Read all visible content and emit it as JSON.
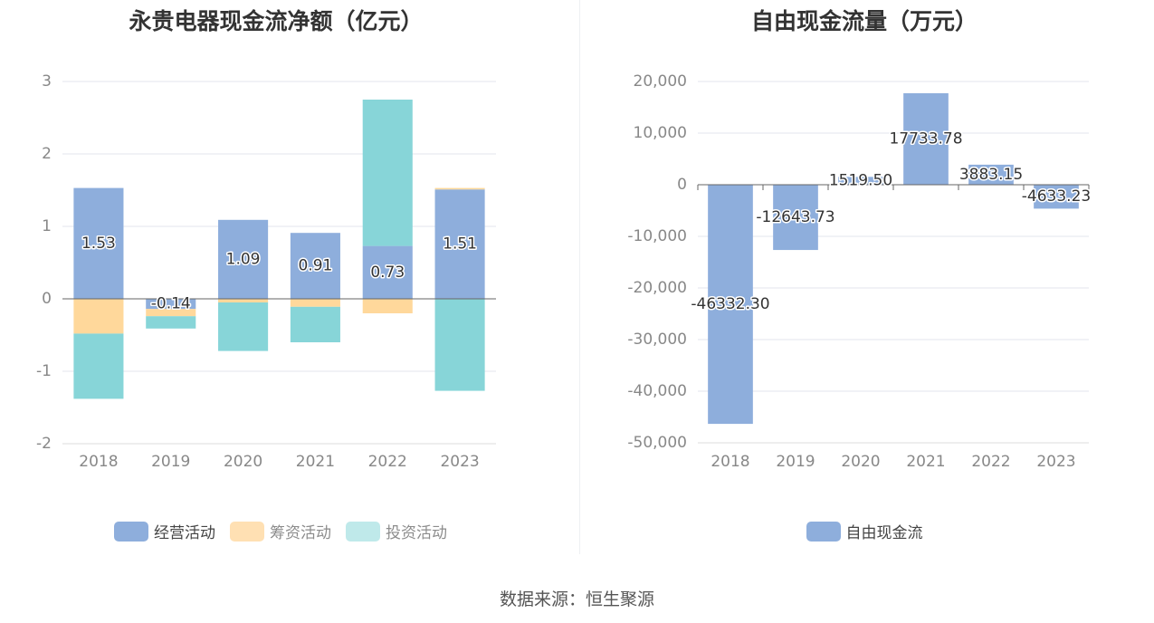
{
  "charts": {
    "left": {
      "title": "永贵电器现金流净额（亿元）",
      "legend": [
        {
          "label": "经营活动",
          "color": "#8eaedc"
        },
        {
          "label": "筹资活动",
          "color": "#ffe0b3"
        },
        {
          "label": "投资活动",
          "color": "#bfe9ea"
        }
      ]
    },
    "right": {
      "title": "自由现金流量（万元）",
      "legend": [
        {
          "label": "自由现金流",
          "color": "#8eaedc"
        }
      ]
    }
  },
  "source": "数据来源：恒生聚源",
  "chart_data": [
    {
      "type": "bar",
      "stacked": true,
      "title": "永贵电器现金流净额（亿元）",
      "categories": [
        "2018",
        "2019",
        "2020",
        "2021",
        "2022",
        "2023"
      ],
      "ylim": [
        -2,
        3
      ],
      "yticks": [
        3,
        2,
        1,
        0,
        -1,
        -2
      ],
      "ytick_labels": [
        "3",
        "2",
        "1",
        "0",
        "-1",
        "-2"
      ],
      "series": [
        {
          "name": "经营活动",
          "color": "#8eaedc",
          "values": [
            1.53,
            -0.14,
            1.09,
            0.91,
            0.73,
            1.51
          ],
          "labels": [
            "1.53",
            "-0.14",
            "1.09",
            "0.91",
            "0.73",
            "1.51"
          ]
        },
        {
          "name": "筹资活动",
          "color": "#ffd89b",
          "values": [
            -0.48,
            -0.1,
            -0.05,
            -0.11,
            -0.2,
            0.02
          ]
        },
        {
          "name": "投资活动",
          "color": "#87d5d8",
          "values": [
            -0.9,
            -0.17,
            -0.67,
            -0.49,
            2.02,
            -1.27
          ]
        }
      ]
    },
    {
      "type": "bar",
      "title": "自由现金流量（万元）",
      "categories": [
        "2018",
        "2019",
        "2020",
        "2021",
        "2022",
        "2023"
      ],
      "ylim": [
        -50000,
        20000
      ],
      "yticks": [
        20000,
        10000,
        0,
        -10000,
        -20000,
        -30000,
        -40000,
        -50000
      ],
      "ytick_labels": [
        "20,000",
        "10,000",
        "0",
        "-10,000",
        "-20,000",
        "-30,000",
        "-40,000",
        "-50,000"
      ],
      "series": [
        {
          "name": "自由现金流",
          "color": "#8eaedc",
          "values": [
            -46332.3,
            -12643.73,
            1519.5,
            17733.78,
            3883.15,
            -4633.23
          ],
          "labels": [
            "-46332.30",
            "-12643.73",
            "1519.50",
            "17733.78",
            "3883.15",
            "-4633.23"
          ]
        }
      ]
    }
  ]
}
